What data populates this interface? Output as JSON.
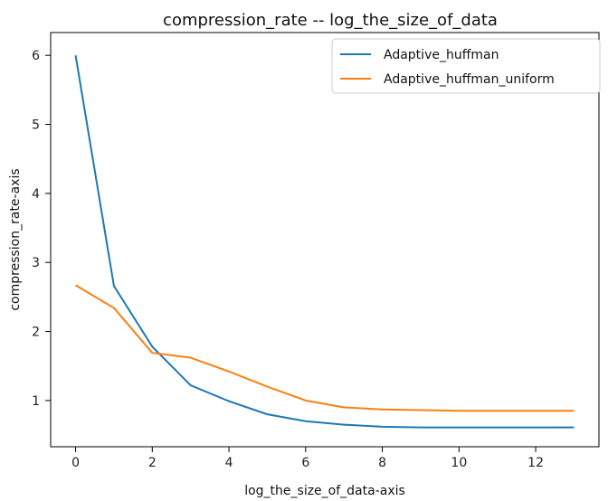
{
  "chart_data": {
    "type": "line",
    "title": "compression_rate -- log_the_size_of_data",
    "xlabel": "log_the_size_of_data-axis",
    "ylabel": "compression_rate-axis",
    "xlim": [
      -0.65,
      13.65
    ],
    "ylim": [
      0.33,
      6.33
    ],
    "xticks": [
      0,
      2,
      4,
      6,
      8,
      10,
      12
    ],
    "yticks": [
      1,
      2,
      3,
      4,
      5,
      6
    ],
    "grid": false,
    "legend_position": "top-right",
    "series": [
      {
        "name": "Adaptive_huffman",
        "color": "#1f77b4",
        "x": [
          0,
          1,
          2,
          3,
          4,
          5,
          6,
          7,
          8,
          9,
          10,
          11,
          12,
          13
        ],
        "y": [
          6.0,
          2.66,
          1.78,
          1.22,
          0.99,
          0.8,
          0.7,
          0.65,
          0.62,
          0.61,
          0.61,
          0.61,
          0.61,
          0.61
        ]
      },
      {
        "name": "Adaptive_huffman_uniform",
        "color": "#ff7f0e",
        "x": [
          0,
          1,
          2,
          3,
          4,
          5,
          6,
          7,
          8,
          9,
          10,
          11,
          12,
          13
        ],
        "y": [
          2.67,
          2.34,
          1.69,
          1.62,
          1.42,
          1.2,
          1.0,
          0.9,
          0.87,
          0.86,
          0.85,
          0.85,
          0.85,
          0.85
        ]
      }
    ]
  }
}
